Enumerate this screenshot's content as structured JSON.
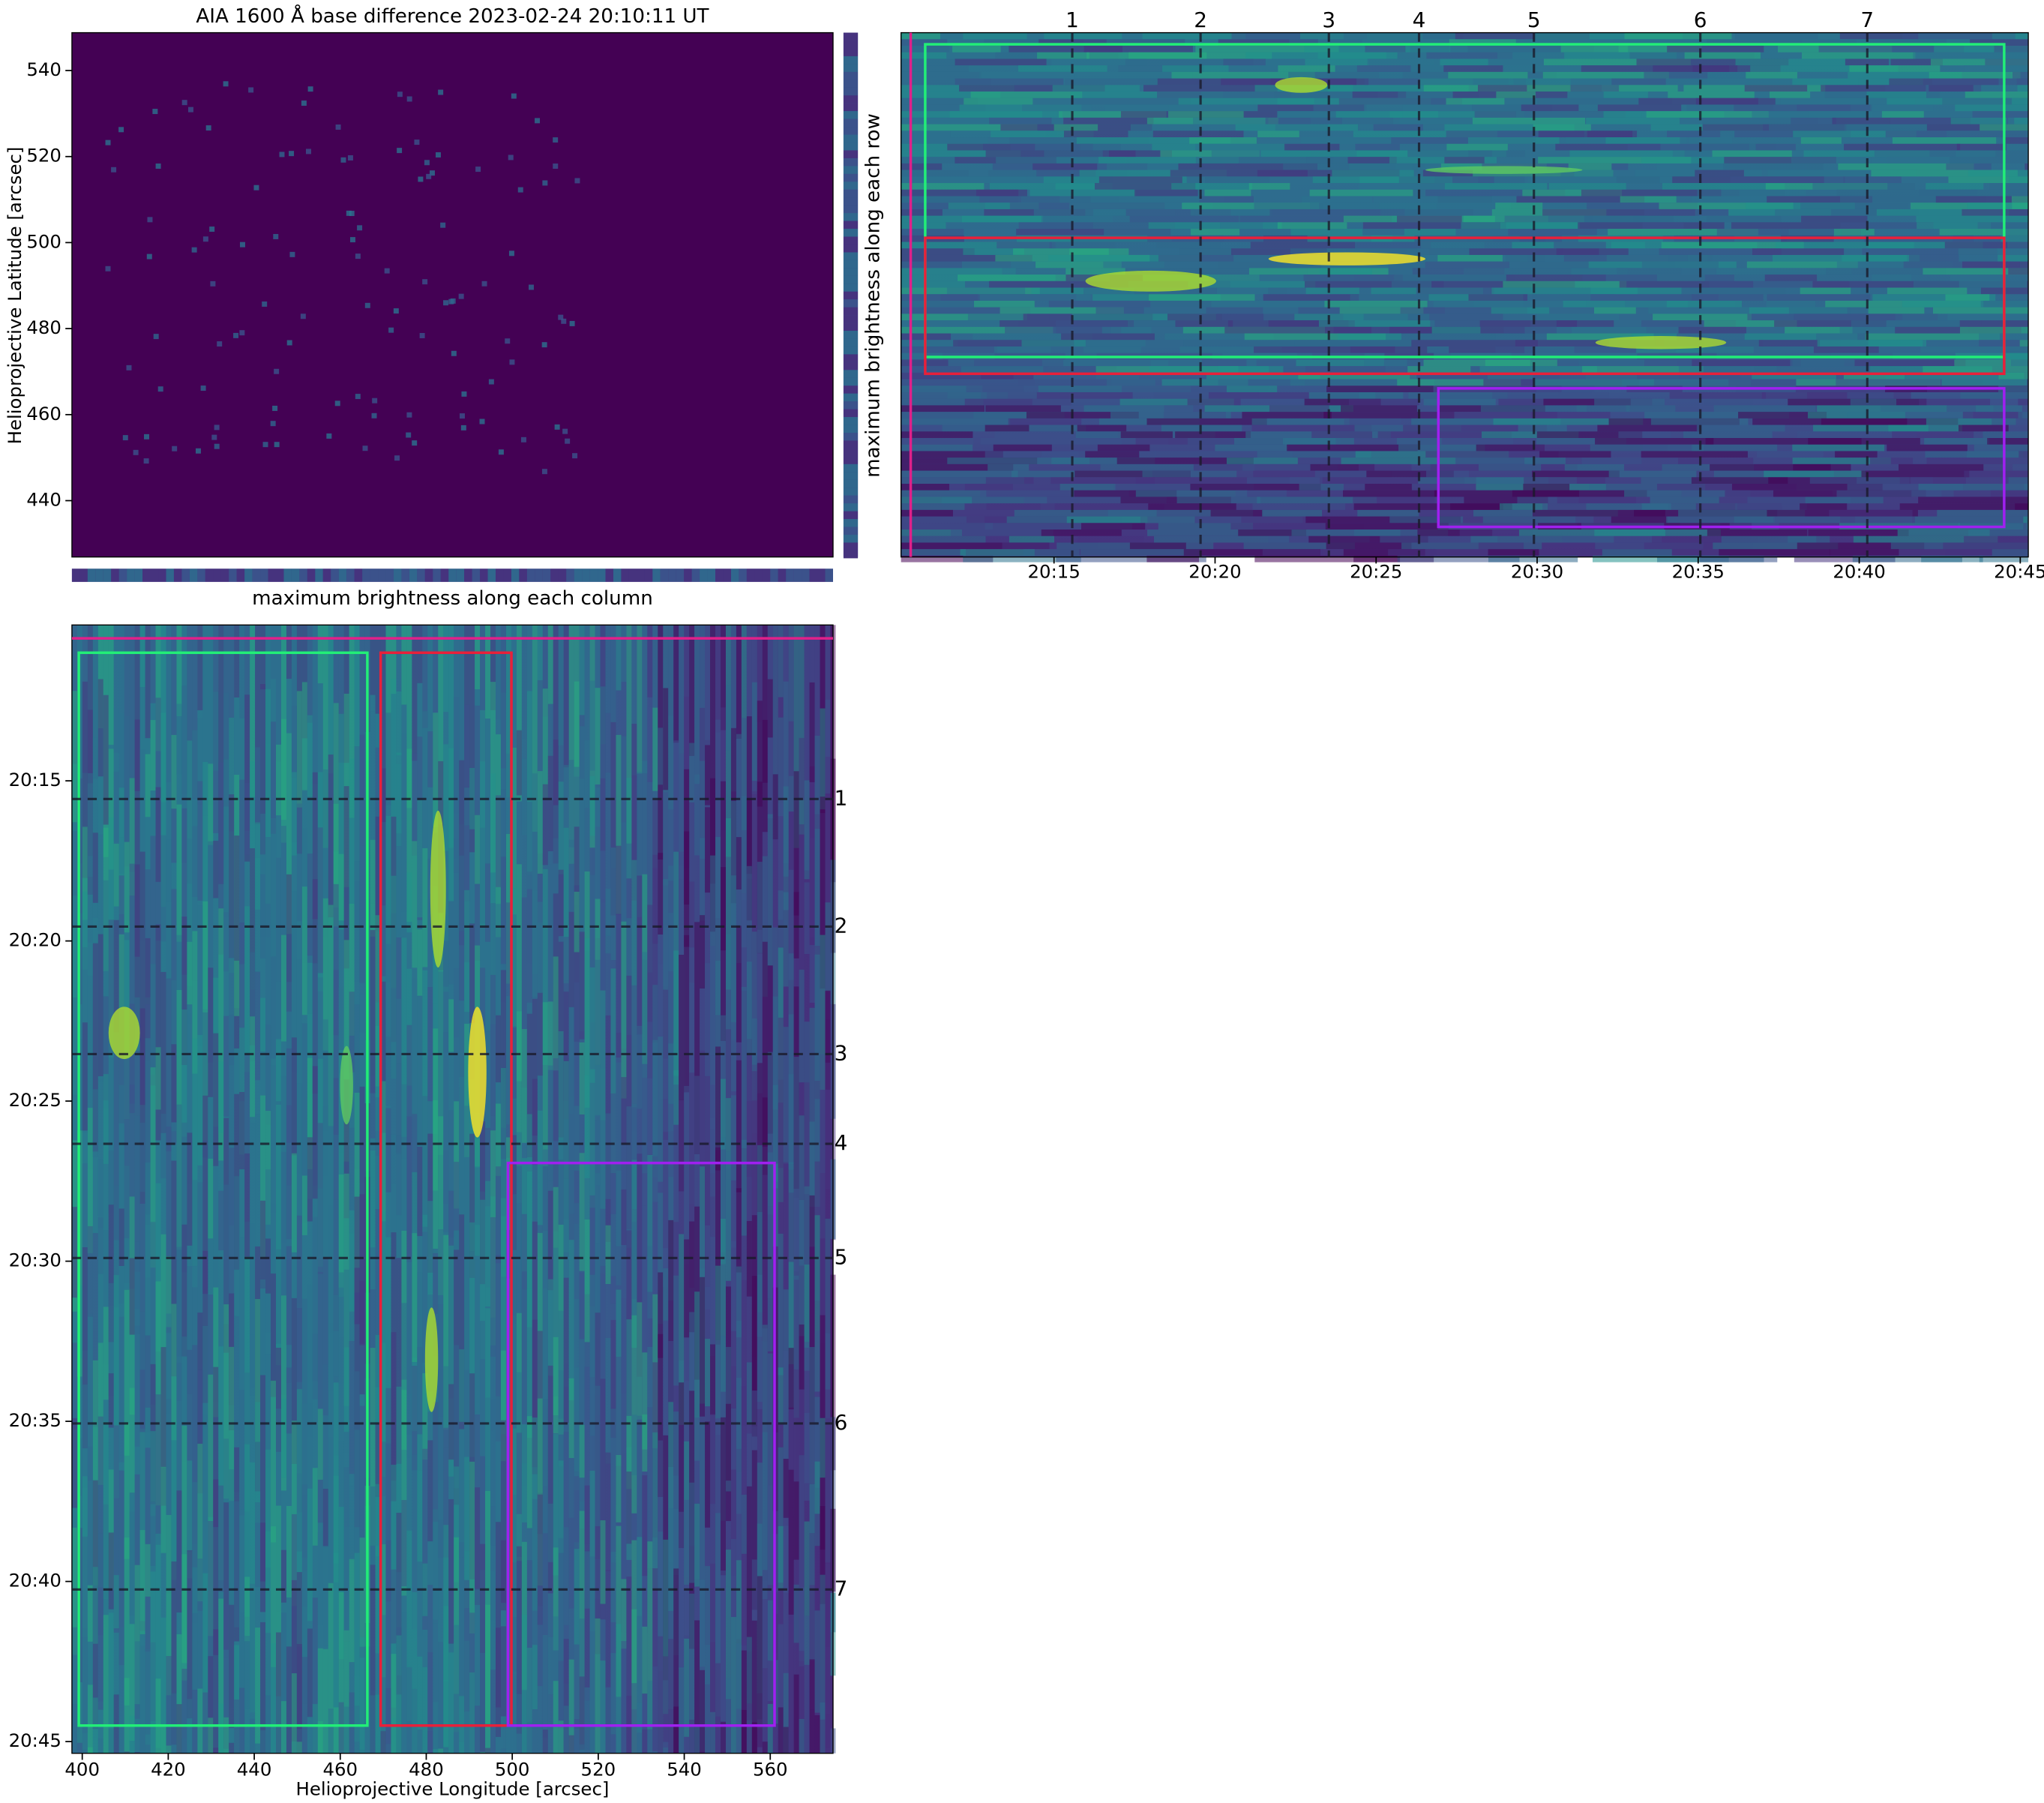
{
  "title": "AIA 1600 Å base difference 2023-02-24 20:10:11 UT",
  "map": {
    "xlim": [
      397.6,
      574.6
    ],
    "ylim": [
      426.9,
      548.8
    ],
    "xticks": [
      400,
      420,
      440,
      460,
      480,
      500,
      520,
      540,
      560
    ],
    "yticks": [
      440,
      460,
      480,
      500,
      520,
      540
    ],
    "xlabel": "Helioprojective Longitude [arcsec]",
    "ylabel": "Helioprojective Latitude [arcsec]"
  },
  "row_profile_label": "maximum brightness along each row",
  "column_profile_label": "maximum brightness along each column",
  "time_row_panel": {
    "tlim": [
      "20:10:15",
      "20:45:15"
    ],
    "tticks": [
      "20:15",
      "20:20",
      "20:25",
      "20:30",
      "20:35",
      "20:40",
      "20:45"
    ]
  },
  "time_column_panel": {
    "tlim": [
      "20:10:08",
      "20:45:22"
    ],
    "tticks": [
      "20:15",
      "20:20",
      "20:25",
      "20:30",
      "20:35",
      "20:40",
      "20:45"
    ]
  },
  "events": [
    {
      "label": "1",
      "time": "20:15:34"
    },
    {
      "label": "2",
      "time": "20:19:33"
    },
    {
      "label": "3",
      "time": "20:23:32"
    },
    {
      "label": "4",
      "time": "20:26:20"
    },
    {
      "label": "5",
      "time": "20:29:54"
    },
    {
      "label": "6",
      "time": "20:35:04"
    },
    {
      "label": "7",
      "time": "20:40:15"
    }
  ],
  "start_marker_time": "20:10:33",
  "regions": [
    {
      "color": "#22ee77",
      "lon": [
        399.2,
        466.3
      ],
      "lat": [
        473.4,
        546.1
      ],
      "time": [
        "20:11:00",
        "20:44:30"
      ]
    },
    {
      "color": "#e8203a",
      "lon": [
        469.4,
        499.8
      ],
      "lat": [
        469.5,
        501.1
      ],
      "time": [
        "20:11:00",
        "20:44:30"
      ]
    },
    {
      "color": "#a020f0",
      "lon": [
        499.0,
        561.0
      ],
      "lat": [
        433.9,
        466.1
      ],
      "time": [
        "20:26:56",
        "20:44:30"
      ]
    }
  ]
}
